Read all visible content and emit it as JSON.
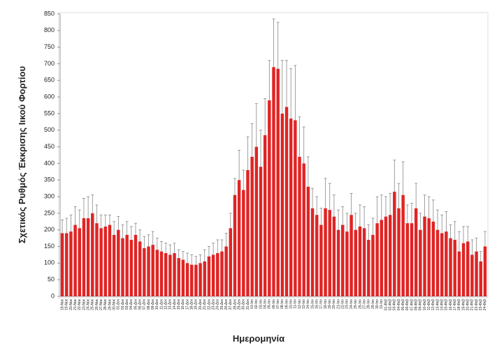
{
  "chart_data": {
    "type": "bar",
    "y_label": "Σχετικός Ρυθμός Έκκρισης Ιικού Φορτίου",
    "x_label": "Ημερομηνία",
    "color": "#e02424",
    "error_color": "#888888",
    "ylim": [
      0,
      850
    ],
    "yticks": [
      0,
      50,
      100,
      150,
      200,
      250,
      300,
      350,
      400,
      450,
      500,
      550,
      600,
      650,
      700,
      750,
      800,
      850
    ],
    "categories": [
      "18-Νοε",
      "19-Νοε",
      "20-Νοε",
      "21-Νοε",
      "22-Νοε",
      "23-Νοε",
      "24-Νοε",
      "25-Νοε",
      "26-Νοε",
      "27-Νοε",
      "28-Νοε",
      "29-Νοε",
      "30-Νοε",
      "01-Δεκ",
      "02-Δεκ",
      "03-Δεκ",
      "04-Δεκ",
      "05-Δεκ",
      "06-Δεκ",
      "07-Δεκ",
      "08-Δεκ",
      "09-Δεκ",
      "10-Δεκ",
      "11-Δεκ",
      "12-Δεκ",
      "13-Δεκ",
      "14-Δεκ",
      "15-Δεκ",
      "16-Δεκ",
      "17-Δεκ",
      "18-Δεκ",
      "19-Δεκ",
      "20-Δεκ",
      "21-Δεκ",
      "22-Δεκ",
      "23-Δεκ",
      "24-Δεκ",
      "25-Δεκ",
      "26-Δεκ",
      "27-Δεκ",
      "28-Δεκ",
      "29-Δεκ",
      "30-Δεκ",
      "31-Δεκ",
      "01-Ιαν",
      "02-Ιαν",
      "03-Ιαν",
      "04-Ιαν",
      "05-Ιαν",
      "06-Ιαν",
      "07-Ιαν",
      "08-Ιαν",
      "09-Ιαν",
      "10-Ιαν",
      "11-Ιαν",
      "12-Ιαν",
      "13-Ιαν",
      "14-Ιαν",
      "15-Ιαν",
      "16-Ιαν",
      "17-Ιαν",
      "18-Ιαν",
      "19-Ιαν",
      "20-Ιαν",
      "21-Ιαν",
      "22-Ιαν",
      "23-Ιαν",
      "24-Ιαν",
      "25-Ιαν",
      "26-Ιαν",
      "27-Ιαν",
      "28-Ιαν",
      "29-Ιαν",
      "30-Ιαν",
      "31-Ιαν",
      "01-Φεβ",
      "02-Φεβ",
      "03-Φεβ",
      "04-Φεβ",
      "05-Φεβ",
      "06-Φεβ",
      "07-Φεβ",
      "08-Φεβ",
      "09-Φεβ",
      "10-Φεβ",
      "11-Φεβ",
      "12-Φεβ",
      "13-Φεβ",
      "14-Φεβ",
      "15-Φεβ",
      "16-Φεβ",
      "17-Φεβ",
      "18-Φεβ",
      "19-Φεβ",
      "20-Φεβ",
      "21-Φεβ",
      "22-Φεβ",
      "23-Φεβ",
      "24-Φεβ"
    ],
    "values": [
      190,
      190,
      195,
      215,
      205,
      235,
      235,
      250,
      220,
      205,
      210,
      215,
      185,
      200,
      175,
      185,
      170,
      185,
      165,
      145,
      150,
      155,
      140,
      135,
      130,
      125,
      130,
      115,
      110,
      100,
      95,
      95,
      100,
      105,
      120,
      125,
      130,
      135,
      150,
      205,
      305,
      350,
      320,
      380,
      420,
      450,
      390,
      485,
      590,
      690,
      685,
      550,
      570,
      535,
      530,
      420,
      400,
      330,
      265,
      245,
      215,
      265,
      260,
      240,
      200,
      215,
      195,
      245,
      200,
      210,
      205,
      170,
      185,
      220,
      230,
      240,
      245,
      315,
      265,
      305,
      220,
      220,
      265,
      200,
      240,
      235,
      225,
      200,
      190,
      195,
      175,
      170,
      135,
      160,
      165,
      125,
      135,
      105,
      150
    ],
    "errors": [
      40,
      45,
      50,
      55,
      55,
      60,
      65,
      55,
      55,
      40,
      35,
      30,
      40,
      40,
      40,
      40,
      40,
      35,
      35,
      35,
      35,
      40,
      35,
      30,
      30,
      30,
      30,
      25,
      25,
      30,
      30,
      25,
      25,
      35,
      30,
      35,
      40,
      35,
      40,
      45,
      50,
      90,
      60,
      100,
      100,
      130,
      110,
      110,
      120,
      145,
      140,
      160,
      140,
      150,
      165,
      120,
      110,
      90,
      60,
      55,
      50,
      90,
      80,
      65,
      60,
      55,
      55,
      65,
      50,
      65,
      65,
      45,
      50,
      80,
      75,
      60,
      65,
      95,
      75,
      100,
      55,
      60,
      75,
      50,
      65,
      65,
      65,
      60,
      55,
      60,
      40,
      55,
      60,
      50,
      45,
      45,
      40,
      30,
      45
    ]
  }
}
